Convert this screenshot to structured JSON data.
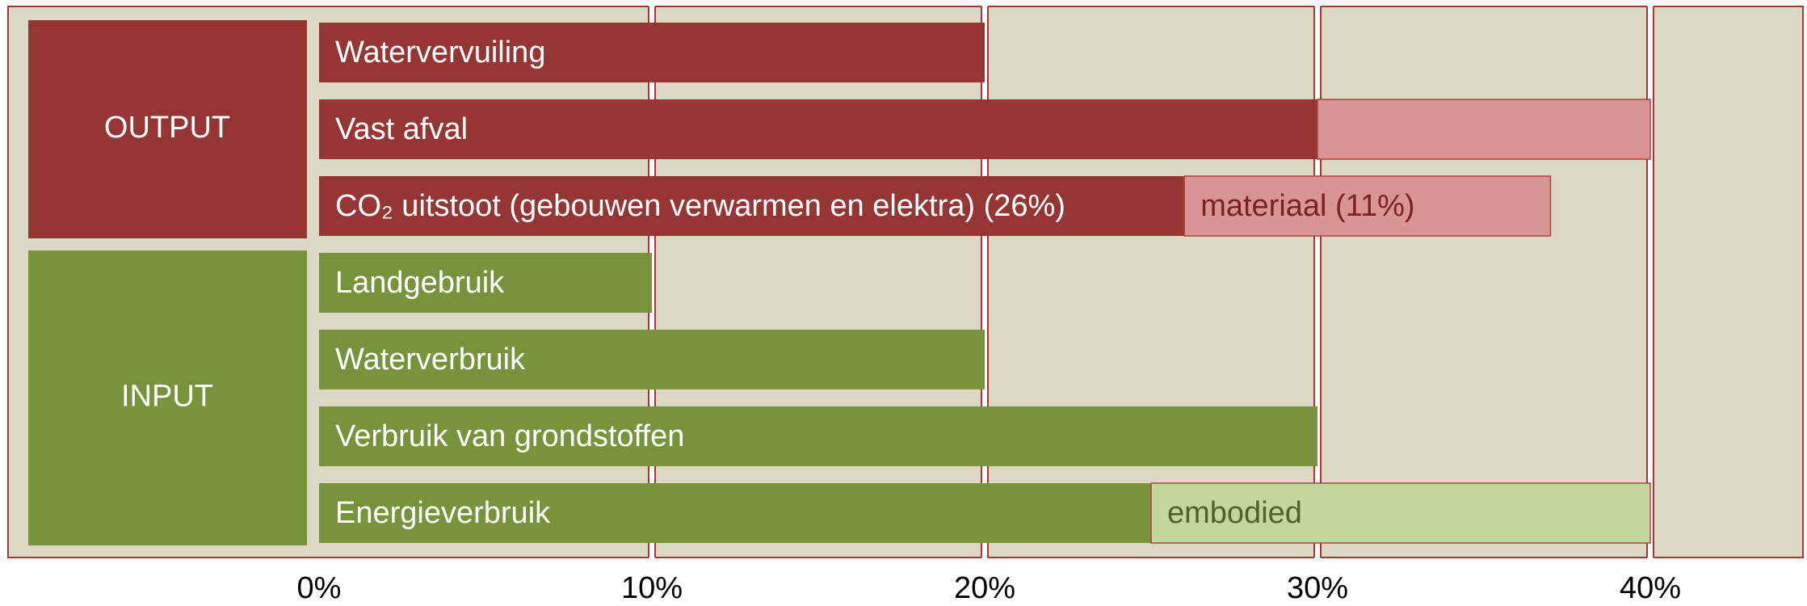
{
  "chart_data": {
    "type": "bar",
    "orientation": "horizontal",
    "stacked": true,
    "xlim": [
      0,
      40
    ],
    "xticks": [
      {
        "value": 0,
        "label": "0%"
      },
      {
        "value": 10,
        "label": "10%"
      },
      {
        "value": 20,
        "label": "20%"
      },
      {
        "value": 30,
        "label": "30%"
      },
      {
        "value": 40,
        "label": "40%"
      }
    ],
    "groups": [
      {
        "label": "OUTPUT",
        "color": "#963634",
        "categories": [
          "Watervervuiling",
          "Vast afval",
          "CO₂ uitstoot (gebouwen verwarmen en elektra) (26%)"
        ],
        "series": [
          {
            "color": "#963634",
            "values": [
              20,
              30,
              26
            ]
          },
          {
            "color": "#d99594",
            "values": [
              null,
              10,
              11
            ],
            "value_labels": [
              null,
              null,
              "materiaal (11%)"
            ],
            "label_color": "#7a2322"
          }
        ]
      },
      {
        "label": "INPUT",
        "color": "#77933c",
        "categories": [
          "Landgebruik",
          "Waterverbruik",
          "Verbruik van grondstoffen",
          "Energieverbruik"
        ],
        "series": [
          {
            "color": "#77933c",
            "values": [
              10,
              20,
              30,
              25
            ]
          },
          {
            "color": "#c3d69b",
            "values": [
              null,
              null,
              null,
              15
            ],
            "value_labels": [
              null,
              null,
              null,
              "embodied"
            ],
            "label_color": "#4f6228"
          }
        ]
      }
    ]
  }
}
